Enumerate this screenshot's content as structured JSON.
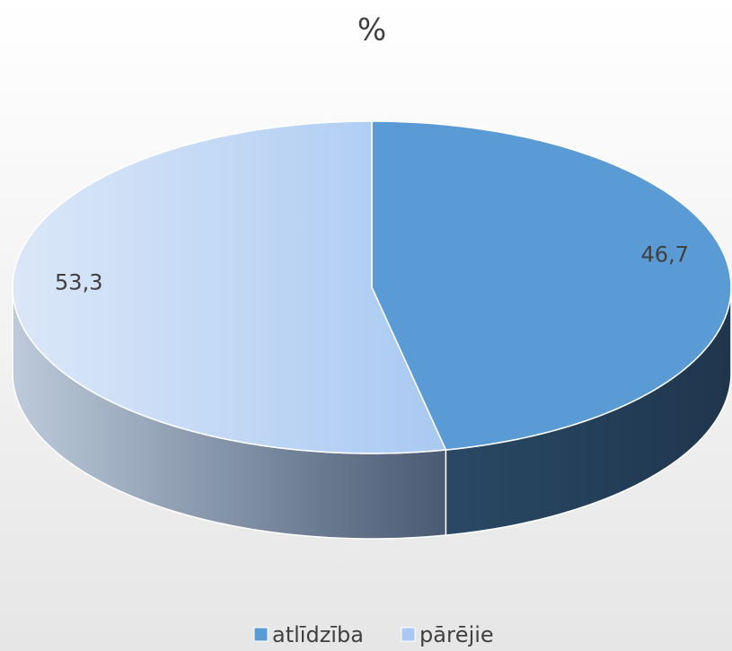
{
  "chart_data": {
    "type": "pie",
    "title": "%",
    "categories": [
      "atlīdzība",
      "pārējie"
    ],
    "values": [
      46.7,
      53.3
    ],
    "value_labels": [
      "46,7",
      "53,3"
    ],
    "colors": [
      "#5b9bd5",
      "#a9c9f2"
    ],
    "legend": "bottom"
  }
}
